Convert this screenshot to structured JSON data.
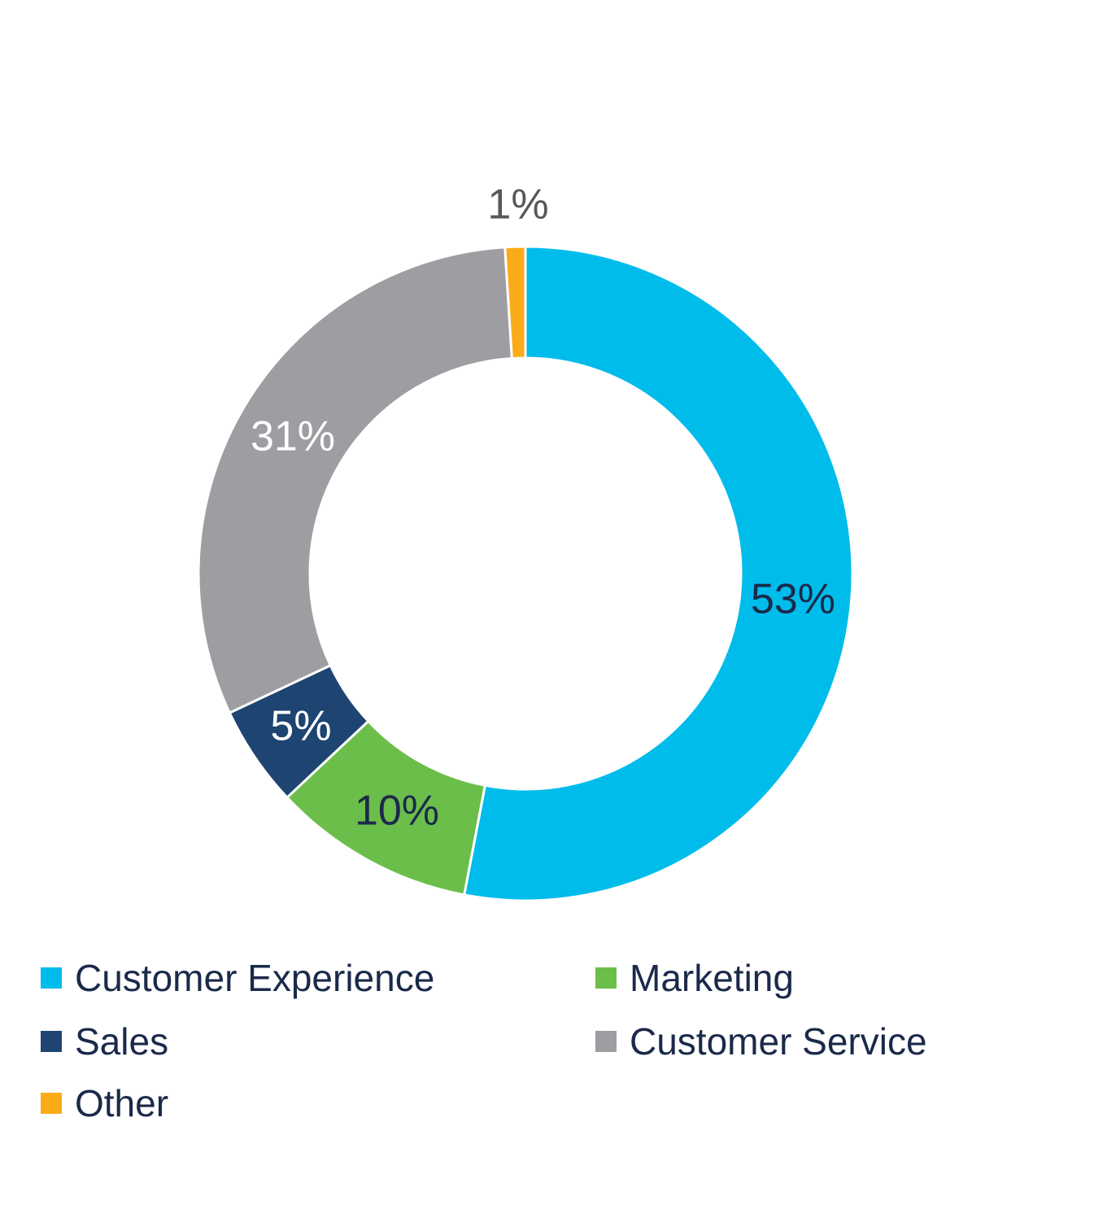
{
  "chart_data": {
    "type": "pie",
    "donut": true,
    "title": "",
    "categories": [
      "Customer Experience",
      "Marketing",
      "Sales",
      "Customer Service",
      "Other"
    ],
    "values": [
      53,
      10,
      5,
      31,
      1
    ],
    "labels": [
      "53%",
      "10%",
      "5%",
      "31%",
      "1%"
    ],
    "colors": [
      "#00bceb",
      "#6cbe4b",
      "#1e4471",
      "#9e9ea2",
      "#fbab18"
    ],
    "label_colors": [
      "#1b2a4a",
      "#1b2a4a",
      "#ffffff",
      "#ffffff",
      "#58585b"
    ],
    "legend": {
      "placement": "bottom",
      "items": [
        {
          "label": "Customer Experience",
          "color": "#00bceb"
        },
        {
          "label": "Marketing",
          "color": "#6cbe4b"
        },
        {
          "label": "Sales",
          "color": "#1e4471"
        },
        {
          "label": "Customer Service",
          "color": "#9e9ea2"
        },
        {
          "label": "Other",
          "color": "#fbab18"
        }
      ]
    }
  }
}
